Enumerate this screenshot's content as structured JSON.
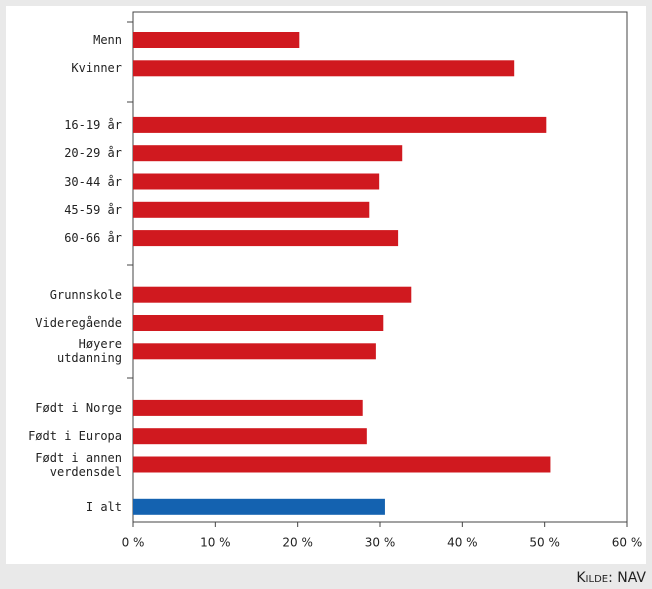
{
  "chart_data": {
    "type": "bar",
    "orientation": "horizontal",
    "categories": [
      "Menn",
      "Kvinner",
      null,
      "16-19 år",
      "20-29 år",
      "30-44 år",
      "45-59 år",
      "60-66 år",
      null,
      "Grunnskole",
      "Videregående",
      "Høyere\nutdanning",
      null,
      "Født i Norge",
      "Født i Europa",
      "Født i annen\nverdensdel",
      "I alt"
    ],
    "values": [
      20.2,
      46.3,
      null,
      50.2,
      32.7,
      29.9,
      28.7,
      32.2,
      null,
      33.8,
      30.4,
      29.5,
      null,
      27.9,
      28.4,
      50.7,
      30.6
    ],
    "colors": [
      "#d0191f",
      "#d0191f",
      null,
      "#d0191f",
      "#d0191f",
      "#d0191f",
      "#d0191f",
      "#d0191f",
      null,
      "#d0191f",
      "#d0191f",
      "#d0191f",
      null,
      "#d0191f",
      "#d0191f",
      "#d0191f",
      "#1462b0"
    ],
    "xlim": [
      0,
      60
    ],
    "xticks": [
      {
        "value": 0,
        "label": "0 %"
      },
      {
        "value": 10,
        "label": "10 %"
      },
      {
        "value": 20,
        "label": "20 %"
      },
      {
        "value": 30,
        "label": "30 %"
      },
      {
        "value": 40,
        "label": "40 %"
      },
      {
        "value": 50,
        "label": "50 %"
      },
      {
        "value": 60,
        "label": "60 %"
      }
    ],
    "source": "Kilde: NAV"
  }
}
